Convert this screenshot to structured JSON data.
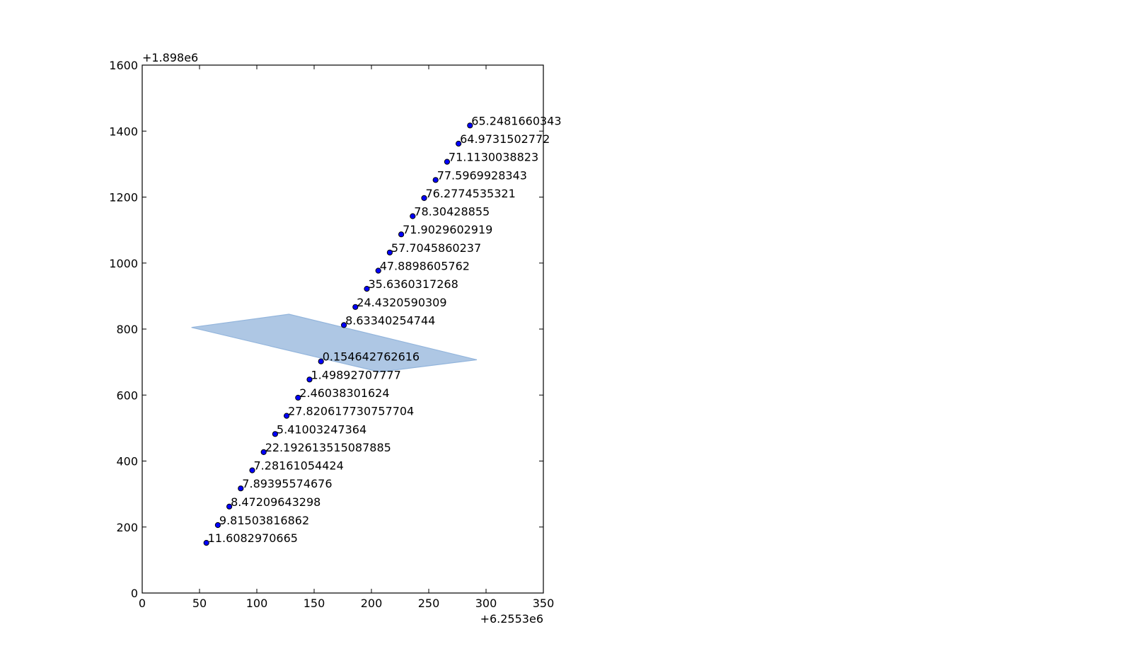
{
  "chart_data": {
    "type": "scatter",
    "title": "",
    "xlabel": "",
    "ylabel": "",
    "xlim": [
      0,
      350
    ],
    "ylim": [
      0,
      1600
    ],
    "x_offset_label": "+6.2553e6",
    "y_offset_label": "+1.898e6",
    "x_ticks": [
      "0",
      "50",
      "100",
      "150",
      "200",
      "250",
      "300",
      "350"
    ],
    "y_ticks": [
      "0",
      "200",
      "400",
      "600",
      "800",
      "1000",
      "1200",
      "1400",
      "1600"
    ],
    "grid": false,
    "legend": "none",
    "colors": {
      "marker_fill": "#0000ff",
      "marker_edge": "#000000",
      "polygon_fill": "#aec7e4",
      "polygon_edge": "#93b5dc",
      "axis": "#000000"
    },
    "polygon": [
      {
        "x": 43,
        "y": 805
      },
      {
        "x": 128,
        "y": 845
      },
      {
        "x": 292,
        "y": 707
      },
      {
        "x": 207,
        "y": 670
      }
    ],
    "points": [
      {
        "x": 56,
        "y": 152,
        "label": "11.6082970665"
      },
      {
        "x": 66,
        "y": 206,
        "label": "9.81503816862"
      },
      {
        "x": 76,
        "y": 262,
        "label": "8.47209643298"
      },
      {
        "x": 86,
        "y": 317,
        "label": "7.89395574676"
      },
      {
        "x": 96,
        "y": 372,
        "label": "7.28161054424"
      },
      {
        "x": 106,
        "y": 427,
        "label": "22.192613515087885"
      },
      {
        "x": 116,
        "y": 482,
        "label": "5.41003247364"
      },
      {
        "x": 126,
        "y": 537,
        "label": "27.820617730757704"
      },
      {
        "x": 136,
        "y": 592,
        "label": "2.46038301624"
      },
      {
        "x": 146,
        "y": 647,
        "label": "1.49892707777"
      },
      {
        "x": 156,
        "y": 702,
        "label": "0.154642762616"
      },
      {
        "x": 176,
        "y": 812,
        "label": "8.63340254744"
      },
      {
        "x": 186,
        "y": 867,
        "label": "24.4320590309"
      },
      {
        "x": 196,
        "y": 922,
        "label": "35.6360317268"
      },
      {
        "x": 206,
        "y": 977,
        "label": "47.8898605762"
      },
      {
        "x": 216,
        "y": 1032,
        "label": "57.7045860237"
      },
      {
        "x": 226,
        "y": 1087,
        "label": "71.9029602919"
      },
      {
        "x": 236,
        "y": 1142,
        "label": "78.30428855"
      },
      {
        "x": 246,
        "y": 1197,
        "label": "76.2774535321"
      },
      {
        "x": 256,
        "y": 1252,
        "label": "77.5969928343"
      },
      {
        "x": 266,
        "y": 1307,
        "label": "71.1130038823"
      },
      {
        "x": 276,
        "y": 1362,
        "label": "64.9731502772"
      },
      {
        "x": 286,
        "y": 1417,
        "label": "65.2481660343"
      }
    ]
  }
}
